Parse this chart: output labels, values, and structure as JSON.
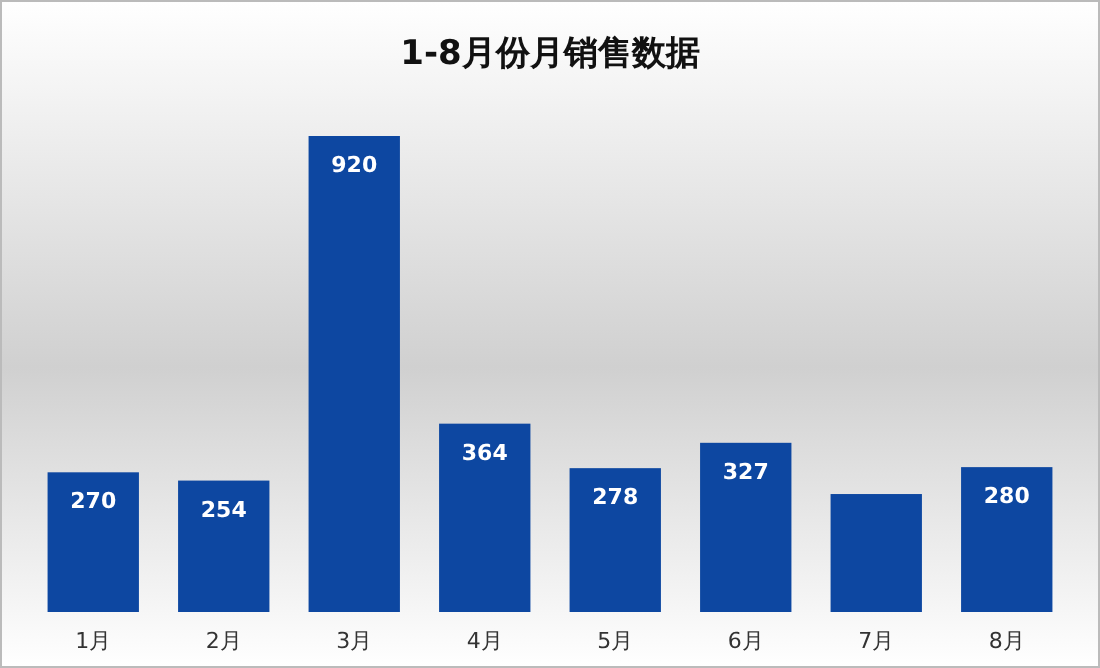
{
  "chart_data": {
    "type": "bar",
    "title": "1-8月份月销售数据",
    "categories": [
      "1月",
      "2月",
      "3月",
      "4月",
      "5月",
      "6月",
      "7月",
      "8月"
    ],
    "values": [
      270,
      254,
      920,
      364,
      278,
      327,
      228,
      280
    ],
    "value_labels": [
      "270",
      "254",
      "920",
      "364",
      "278",
      "327",
      null,
      "280"
    ],
    "color": "#0d47a1"
  }
}
